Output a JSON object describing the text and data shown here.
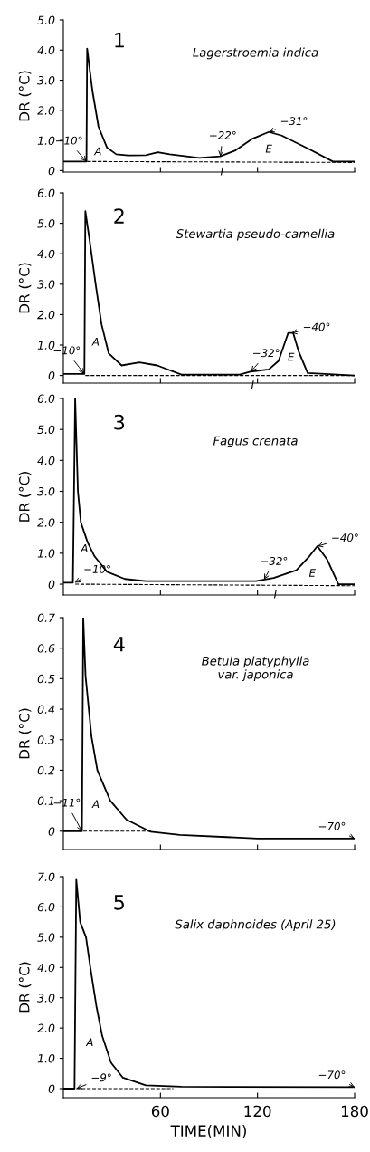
{
  "chart_data": [
    {
      "type": "line",
      "title": "1",
      "subtitle": "Lagerstroemia indica",
      "ylabel": "DR (°C)",
      "xlim": [
        0,
        180
      ],
      "xticks": [
        60,
        120,
        180
      ],
      "ylim": [
        -0.05,
        5.0
      ],
      "yticks": [
        0,
        {
          "value": 1,
          "label": "1.0"
        },
        {
          "value": 2,
          "label": "2.0"
        },
        {
          "value": 3,
          "label": "3.0"
        },
        {
          "value": 4,
          "label": "4.0"
        },
        {
          "value": 5,
          "label": "5.0"
        }
      ],
      "tick_labels": "y",
      "grid": false,
      "series": [
        {
          "color": "#000000",
          "line_style": "solid",
          "x": [
            0,
            14.3,
            14.7,
            18,
            21.7,
            27,
            32.7,
            40,
            51,
            58.4,
            65.7,
            84,
            97,
            106,
            117,
            127,
            135,
            152,
            166.6,
            180
          ],
          "values": [
            0.3,
            0.3,
            4.05,
            2.64,
            1.46,
            0.76,
            0.54,
            0.5,
            0.51,
            0.61,
            0.54,
            0.42,
            0.47,
            0.66,
            1.06,
            1.28,
            1.16,
            0.71,
            0.3,
            0.3
          ]
        },
        {
          "color": "#000000",
          "line_style": "dashed",
          "x": [
            14.7,
            180
          ],
          "values": [
            0.3,
            0.27
          ]
        }
      ],
      "annotations": [
        {
          "text": "−10°",
          "x": 14.3,
          "y": 0.3
        },
        {
          "text": "A",
          "x": 14.5,
          "y": 0.61
        },
        {
          "text": "−22°",
          "x": 97,
          "y": 0.47
        },
        {
          "text": "E",
          "x": 127,
          "y": 1.28
        },
        {
          "text": "−31°",
          "x": 127,
          "y": 1.28
        },
        {
          "text": "I",
          "x": 98,
          "y": 0.28
        }
      ]
    },
    {
      "type": "line",
      "title": "2",
      "subtitle": "Stewartia pseudo-camellia",
      "ylabel": "DR (°C)",
      "xlim": [
        0,
        180
      ],
      "xticks": [
        60,
        120,
        180
      ],
      "ylim": [
        -0.25,
        6.0
      ],
      "yticks": [
        0,
        {
          "value": 1,
          "label": "1.0"
        },
        {
          "value": 2,
          "label": "2.0"
        },
        {
          "value": 3,
          "label": "3.0"
        },
        {
          "value": 4,
          "label": "4.0"
        },
        {
          "value": 5,
          "label": "5.0"
        },
        {
          "value": 6,
          "label": "6.0"
        }
      ],
      "tick_labels": "y",
      "grid": false,
      "series": [
        {
          "color": "#000000",
          "line_style": "solid",
          "x": [
            0,
            13,
            13.6,
            16.4,
            20,
            23.6,
            28,
            36,
            47,
            58,
            73,
            109,
            116,
            127,
            133,
            139,
            142,
            145.5,
            151,
            180
          ],
          "values": [
            0.05,
            0.05,
            5.4,
            4.38,
            2.98,
            1.68,
            0.73,
            0.33,
            0.43,
            0.33,
            0.03,
            0.03,
            0.13,
            0.2,
            0.48,
            1.4,
            1.4,
            0.78,
            0.08,
            0.0
          ]
        },
        {
          "color": "#000000",
          "line_style": "dashed",
          "x": [
            13.6,
            180
          ],
          "values": [
            0.0,
            0.0
          ]
        }
      ],
      "annotations": [
        {
          "text": "−10°",
          "x": 13,
          "y": 0.05
        },
        {
          "text": "A",
          "x": 13.1,
          "y": 1.08
        },
        {
          "text": "−32°",
          "x": 116,
          "y": 0.13
        },
        {
          "text": "E",
          "x": 133.7,
          "y": 0.58
        },
        {
          "text": "−40°",
          "x": 141,
          "y": 1.4
        },
        {
          "text": "I",
          "x": 117,
          "y": 0.0
        }
      ]
    },
    {
      "type": "line",
      "title": "3",
      "subtitle": "Fagus crenata",
      "ylabel": "DR (°C)",
      "xlim": [
        0,
        180
      ],
      "xticks": [
        60,
        120,
        180
      ],
      "ylim": [
        -0.35,
        6.0
      ],
      "yticks": [
        0,
        {
          "value": 1,
          "label": "1.0"
        },
        {
          "value": 2,
          "label": "2.0"
        },
        {
          "value": 3,
          "label": "3.0"
        },
        {
          "value": 4,
          "label": "4.0"
        },
        {
          "value": 5,
          "label": "5.0"
        },
        {
          "value": 6,
          "label": "6.0"
        }
      ],
      "tick_labels": "y",
      "grid": false,
      "series": [
        {
          "color": "#000000",
          "line_style": "solid",
          "x": [
            0,
            5.9,
            7.3,
            9,
            10.8,
            15,
            19.3,
            27,
            38,
            51,
            119,
            130,
            144,
            152,
            157,
            163,
            170,
            180
          ],
          "values": [
            0.05,
            0.05,
            6.0,
            3.0,
            2.0,
            1.35,
            0.9,
            0.4,
            0.17,
            0.1,
            0.1,
            0.2,
            0.45,
            0.9,
            1.23,
            0.8,
            0.0,
            0.0
          ]
        },
        {
          "color": "#000000",
          "line_style": "dashed",
          "x": [
            7.3,
            180
          ],
          "values": [
            0.0,
            -0.05
          ]
        }
      ],
      "annotations": [
        {
          "text": "A",
          "x": 6.1,
          "y": 1.13
        },
        {
          "text": "−10°",
          "x": 7,
          "y": 0.05
        },
        {
          "text": "−32°",
          "x": 124,
          "y": 0.15
        },
        {
          "text": "E",
          "x": 157,
          "y": 1.23
        },
        {
          "text": "−40°",
          "x": 157,
          "y": 1.23
        },
        {
          "text": "I",
          "x": 131,
          "y": -0.03
        }
      ]
    },
    {
      "type": "line",
      "title": "4",
      "subtitle": "Betula platyphylla\nvar. japonica",
      "ylabel": "DR (°C)",
      "xlim": [
        0,
        180
      ],
      "xticks": [
        60,
        120,
        180
      ],
      "ylim": [
        -0.06,
        0.7
      ],
      "yticks": [
        0,
        0.1,
        0.2,
        0.3,
        0.4,
        0.5,
        0.6,
        0.7
      ],
      "tick_labels": "y",
      "grid": false,
      "series": [
        {
          "color": "#000000",
          "line_style": "solid",
          "x": [
            0,
            11.5,
            12.3,
            13.7,
            17.4,
            21,
            29,
            39,
            54,
            72,
            120,
            180
          ],
          "values": [
            0,
            0,
            0.7,
            0.51,
            0.31,
            0.2,
            0.1,
            0.038,
            -0.002,
            -0.012,
            -0.024,
            -0.024
          ]
        },
        {
          "color": "#000000",
          "line_style": "dashed",
          "x": [
            12.3,
            54
          ],
          "values": [
            0,
            0
          ]
        }
      ],
      "annotations": [
        {
          "text": "−11°",
          "x": 11.5,
          "y": 0
        },
        {
          "text": "A",
          "x": 11.6,
          "y": 0.086
        },
        {
          "text": "−70°",
          "x": 180,
          "y": -0.024
        }
      ]
    },
    {
      "type": "line",
      "title": "5",
      "subtitle": "Salix daphnoides (April 25)",
      "ylabel": "DR (°C)",
      "xlabel": "TIME(MIN)",
      "xlim": [
        0,
        180
      ],
      "xticks": [
        60,
        120,
        180
      ],
      "ylim": [
        -0.3,
        7.0
      ],
      "yticks": [
        0,
        {
          "value": 1,
          "label": "1.0"
        },
        {
          "value": 2,
          "label": "2.0"
        },
        {
          "value": 3,
          "label": "3.0"
        },
        {
          "value": 4,
          "label": "4.0"
        },
        {
          "value": 5,
          "label": "5.0"
        },
        {
          "value": 6,
          "label": "6.0"
        },
        {
          "value": 7,
          "label": "7.0"
        }
      ],
      "grid": false,
      "series": [
        {
          "color": "#000000",
          "line_style": "solid",
          "x": [
            0,
            6.9,
            8,
            10.4,
            14,
            16.7,
            20.4,
            24,
            29.5,
            36.8,
            51,
            73,
            180
          ],
          "values": [
            0,
            0,
            6.9,
            5.5,
            5.0,
            4.0,
            2.73,
            1.74,
            0.85,
            0.36,
            0.11,
            0.06,
            0.05
          ]
        },
        {
          "color": "#000000",
          "line_style": "dashed",
          "x": [
            8,
            68
          ],
          "values": [
            0,
            0
          ]
        }
      ],
      "annotations": [
        {
          "text": "A",
          "x": 7.1,
          "y": 1.5
        },
        {
          "text": "−9°",
          "x": 8,
          "y": 0
        },
        {
          "text": "−70°",
          "x": 180,
          "y": 0.05
        }
      ]
    }
  ]
}
